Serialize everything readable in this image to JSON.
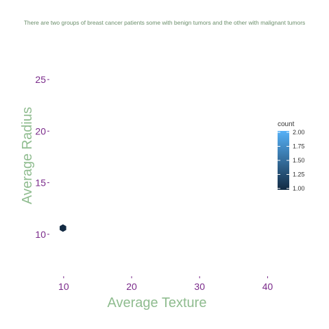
{
  "colors": {
    "title": "#6b8e6b",
    "axis_title": "#8fbc8f",
    "tick_label": "#7a2a8a",
    "tick_mark": "#7a2a8a",
    "legend_text": "#333333",
    "low": "#132b43",
    "high": "#56b1f7"
  },
  "chart_data": {
    "type": "hexbin",
    "title": "There are two groups of breast cancer patients some with benign tumors and the other with malignant tumors",
    "xlabel": "Average Texture",
    "ylabel": "Average Radius",
    "xlim": [
      8,
      45
    ],
    "ylim": [
      6,
      26.2
    ],
    "xticks": [
      10,
      20,
      30,
      40
    ],
    "yticks": [
      10,
      15,
      20,
      25
    ],
    "grid": false,
    "bins": [
      {
        "x": 9.9,
        "y": 10.6,
        "count": 1
      }
    ],
    "legend": {
      "title": "count",
      "position": "right",
      "min": 1.0,
      "max": 2.0,
      "labels": [
        "2.00",
        "1.75",
        "1.50",
        "1.25",
        "1.00"
      ]
    }
  }
}
